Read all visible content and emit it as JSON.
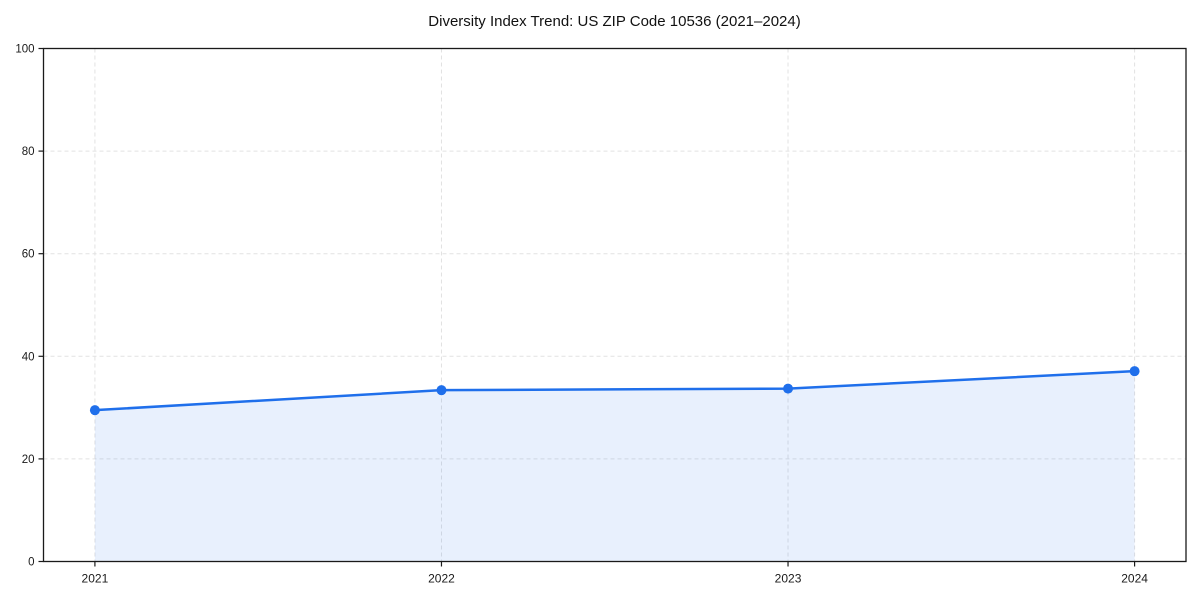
{
  "chart_data": {
    "type": "area",
    "title": "Diversity Index Trend: US ZIP Code 10536 (2021–2024)",
    "x": [
      2021,
      2022,
      2023,
      2024
    ],
    "values": [
      29.5,
      33.4,
      33.7,
      37.1
    ],
    "xlabel": "",
    "ylabel": "",
    "xtick_labels": [
      "2021",
      "2022",
      "2023",
      "2024"
    ],
    "yticks": [
      0,
      20,
      40,
      60,
      80,
      100
    ],
    "ytick_labels": [
      "0",
      "20",
      "40",
      "60",
      "80",
      "100"
    ],
    "ylim": [
      0,
      100
    ],
    "grid": "dashed horizontal and vertical",
    "legend": "none",
    "marker": "circle",
    "colors": {
      "line": "#1f6feb",
      "marker": "#1f6feb",
      "fill": "rgba(31,111,235,0.10)",
      "grid": "#e2e2e2",
      "axis": "#1a1a1a",
      "tick_text": "#1a1a1a",
      "background": "#ffffff"
    }
  }
}
